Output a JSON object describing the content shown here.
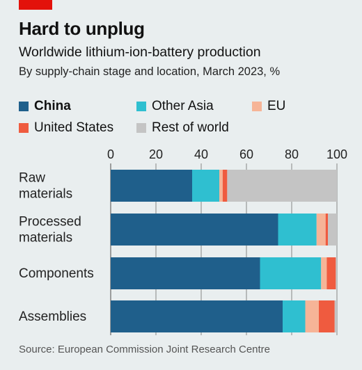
{
  "header": {
    "title": "Hard to unplug",
    "subtitle": "Worldwide lithium-ion-battery production",
    "caption": "By supply-chain stage and location, March 2023, %"
  },
  "source": "Source: European Commission Joint Research Centre",
  "colors": {
    "China": "#1f5f8b",
    "Other Asia": "#2fbfd0",
    "EU": "#f6b497",
    "United States": "#ef5b3f",
    "Rest of world": "#c4c4c4",
    "accent_tag": "#e3120b",
    "gridline": "#7a7a7a"
  },
  "chart_data": {
    "type": "bar",
    "orientation": "horizontal",
    "stacked": true,
    "categories": [
      "Raw\nmaterials",
      "Processed\nmaterials",
      "Components",
      "Assemblies"
    ],
    "series": [
      {
        "name": "China",
        "values": [
          36,
          74,
          66,
          76
        ]
      },
      {
        "name": "Other Asia",
        "values": [
          12,
          17,
          27,
          10
        ]
      },
      {
        "name": "EU",
        "values": [
          1.5,
          4,
          2.5,
          6
        ]
      },
      {
        "name": "United States",
        "values": [
          2,
          1,
          4,
          7
        ]
      },
      {
        "name": "Rest of world",
        "values": [
          48.5,
          4,
          0.5,
          1
        ]
      }
    ],
    "legend_order": [
      "China",
      "Other Asia",
      "EU",
      "United States",
      "Rest of world"
    ],
    "legend_placement": "top",
    "xlim": [
      0,
      100
    ],
    "xticks": [
      0,
      20,
      40,
      60,
      80,
      100
    ],
    "grid": true
  }
}
